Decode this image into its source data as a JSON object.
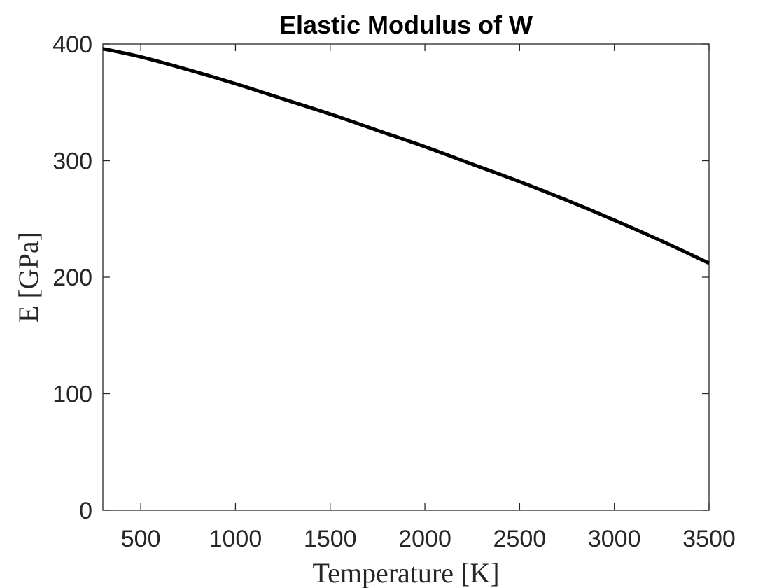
{
  "chart_data": {
    "type": "line",
    "title": "Elastic Modulus of W",
    "xlabel": "Temperature [K]",
    "ylabel": "E [GPa]",
    "xlim": [
      300,
      3500
    ],
    "ylim": [
      0,
      400
    ],
    "xticks": [
      500,
      1000,
      1500,
      2000,
      2500,
      3000,
      3500
    ],
    "yticks": [
      0,
      100,
      200,
      300,
      400
    ],
    "grid": false,
    "series": [
      {
        "color": "#000000",
        "x": [
          300,
          500,
          750,
          1000,
          1250,
          1500,
          1750,
          2000,
          2250,
          2500,
          2750,
          3000,
          3250,
          3500
        ],
        "y": [
          396,
          389,
          378,
          366,
          353,
          340,
          326,
          312,
          297,
          282,
          266,
          249,
          231,
          212
        ]
      }
    ]
  }
}
